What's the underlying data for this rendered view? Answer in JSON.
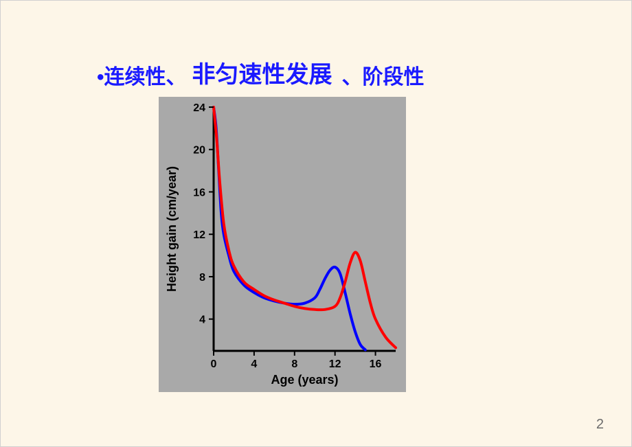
{
  "title": {
    "part1": "•连续性、",
    "part2": "非匀速性发展",
    "part3": "、阶段性",
    "color": "#1a1aff"
  },
  "page_number": "2",
  "chart": {
    "type": "line",
    "background_color": "#a9a9a9",
    "plot_bg": "#a9a9a9",
    "axis_color": "#000000",
    "tick_color": "#000000",
    "label_color": "#000000",
    "label_font": "Arial",
    "xlabel": "Age (years)",
    "ylabel": "Height gain (cm/year)",
    "label_fontsize": 18,
    "tick_fontsize": 16,
    "line_width": 4,
    "xlim": [
      0,
      18
    ],
    "ylim": [
      1,
      24
    ],
    "xticks": [
      0,
      4,
      8,
      12,
      16
    ],
    "yticks": [
      4,
      8,
      12,
      16,
      20,
      24
    ],
    "series": [
      {
        "name": "blue",
        "color": "#0000ff",
        "points": [
          [
            0,
            24
          ],
          [
            0.25,
            22
          ],
          [
            0.5,
            18
          ],
          [
            0.75,
            14
          ],
          [
            1,
            12
          ],
          [
            1.5,
            10
          ],
          [
            2,
            8.5
          ],
          [
            3,
            7.2
          ],
          [
            4,
            6.5
          ],
          [
            5,
            6
          ],
          [
            6,
            5.7
          ],
          [
            7,
            5.5
          ],
          [
            8,
            5.4
          ],
          [
            9,
            5.5
          ],
          [
            10,
            6
          ],
          [
            10.5,
            6.8
          ],
          [
            11,
            7.8
          ],
          [
            11.5,
            8.6
          ],
          [
            12,
            8.9
          ],
          [
            12.5,
            8.3
          ],
          [
            13,
            6.5
          ],
          [
            13.5,
            4.5
          ],
          [
            14,
            2.8
          ],
          [
            14.5,
            1.6
          ],
          [
            15,
            1.1
          ]
        ]
      },
      {
        "name": "red",
        "color": "#ff0000",
        "points": [
          [
            0,
            24
          ],
          [
            0.3,
            21
          ],
          [
            0.6,
            17
          ],
          [
            1,
            13
          ],
          [
            1.5,
            10.5
          ],
          [
            2,
            9
          ],
          [
            3,
            7.5
          ],
          [
            4,
            6.8
          ],
          [
            5,
            6.2
          ],
          [
            6,
            5.8
          ],
          [
            7,
            5.5
          ],
          [
            8,
            5.2
          ],
          [
            9,
            5
          ],
          [
            10,
            4.9
          ],
          [
            11,
            4.9
          ],
          [
            12,
            5.2
          ],
          [
            12.5,
            6
          ],
          [
            13,
            7.5
          ],
          [
            13.5,
            9.3
          ],
          [
            14,
            10.3
          ],
          [
            14.5,
            9.5
          ],
          [
            15,
            7.5
          ],
          [
            15.5,
            5.5
          ],
          [
            16,
            4
          ],
          [
            17,
            2.3
          ],
          [
            18,
            1.3
          ]
        ]
      }
    ]
  }
}
